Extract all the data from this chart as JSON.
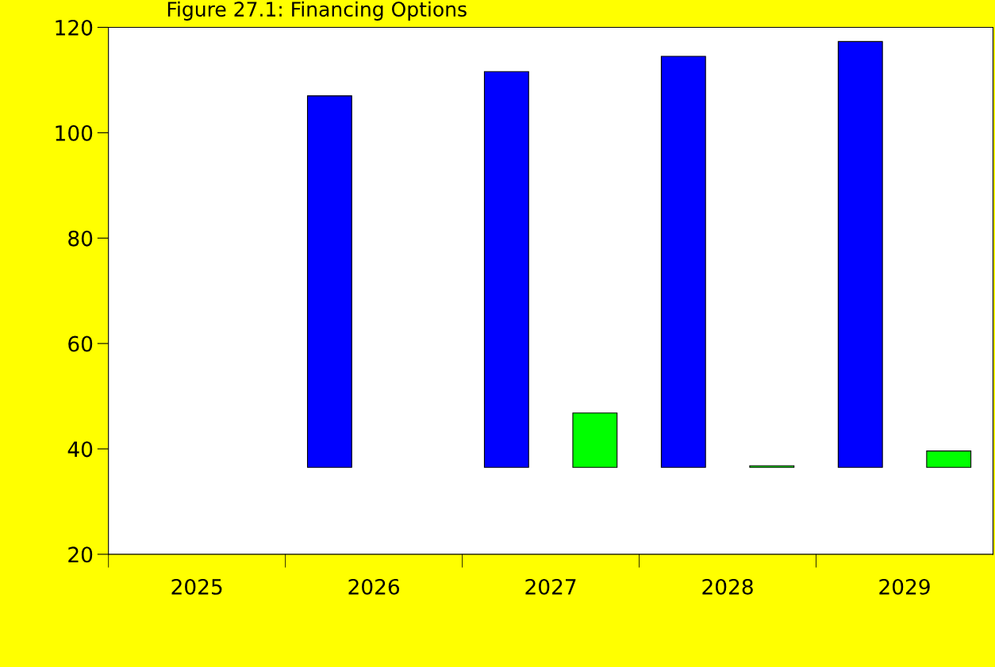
{
  "chart_data": {
    "type": "bar",
    "title": "Figure 27.1: Financing Options",
    "categories": [
      "2025",
      "2026",
      "2027",
      "2028",
      "2029"
    ],
    "series": [
      {
        "color": "#0000ff",
        "values": [
          null,
          70.5,
          75.1,
          78.0,
          80.8
        ],
        "base": [
          null,
          36.5,
          36.5,
          36.5,
          36.5
        ]
      },
      {
        "color": "#00ff00",
        "values": [
          null,
          null,
          10.3,
          0.3,
          3.1
        ],
        "base": [
          null,
          null,
          36.5,
          36.5,
          36.5
        ]
      }
    ],
    "ylim": [
      20,
      120
    ],
    "yticks": [
      20,
      40,
      60,
      80,
      100,
      120
    ],
    "grid": false,
    "legend": false
  }
}
